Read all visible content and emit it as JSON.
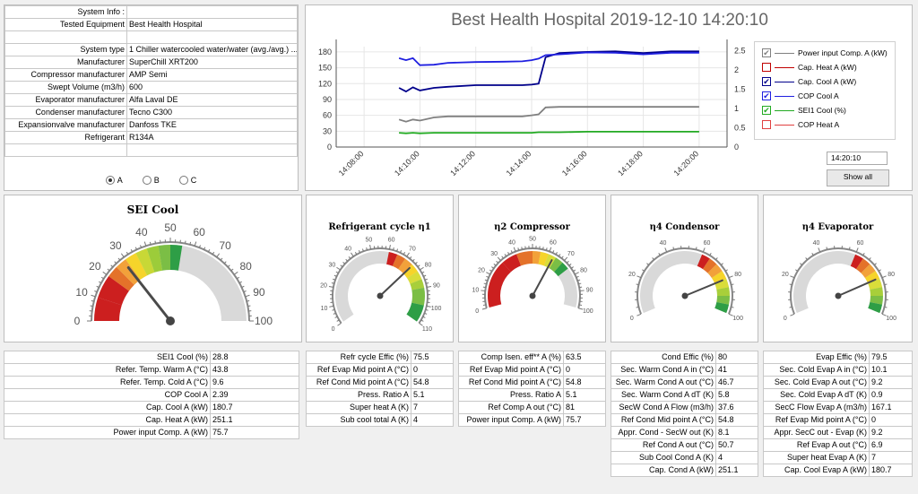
{
  "info": {
    "rows": [
      {
        "k": "System Info :",
        "v": ""
      },
      {
        "k": "Tested Equipment",
        "v": "Best Health Hospital"
      },
      {
        "k": "",
        "v": ""
      },
      {
        "k": "System type",
        "v": "1 Chiller watercooled water/water (avg./avg.) ..."
      },
      {
        "k": "Manufacturer",
        "v": "SuperChill XRT200"
      },
      {
        "k": "Compressor manufacturer",
        "v": "AMP Semi"
      },
      {
        "k": "Swept Volume (m3/h)",
        "v": "600"
      },
      {
        "k": "Evaporator manufacturer",
        "v": "Alfa Laval DE"
      },
      {
        "k": "Condenser manufacturer",
        "v": "Tecno C300"
      },
      {
        "k": "Expansionvalve manufacturer",
        "v": "Danfoss TKE"
      },
      {
        "k": "Refrigerant",
        "v": "R134A"
      },
      {
        "k": "",
        "v": ""
      }
    ],
    "radios": [
      {
        "label": "A",
        "selected": true
      },
      {
        "label": "B",
        "selected": false
      },
      {
        "label": "C",
        "selected": false
      }
    ]
  },
  "chart": {
    "title": "Best Health Hospital 2019-12-10 14:20:10",
    "time_value": "14:20:10",
    "show_all_label": "Show all",
    "left_ticks": [
      "0",
      "30",
      "60",
      "90",
      "120",
      "150",
      "180"
    ],
    "right_ticks": [
      "0",
      "0.5",
      "1",
      "1.5",
      "2",
      "2.5"
    ],
    "x_ticks": [
      "14:08:00",
      "14:10:00",
      "14:12:00",
      "14:14:00",
      "14:16:00",
      "14:18:00",
      "14:20:00"
    ],
    "legend": [
      {
        "label": "Power input Comp. A (kW)",
        "checked": true,
        "color": "#808080",
        "box": "#808080"
      },
      {
        "label": "Cap. Heat A (kW)",
        "checked": false,
        "color": "#c00000",
        "box": "#c00000"
      },
      {
        "label": "Cap. Cool A (kW)",
        "checked": true,
        "color": "#00008b",
        "box": "#00008b"
      },
      {
        "label": "COP Cool A",
        "checked": true,
        "color": "#1f1fe0",
        "box": "#1f1fe0"
      },
      {
        "label": "SEI1 Cool (%)",
        "checked": true,
        "color": "#22aa22",
        "box": "#22aa22"
      },
      {
        "label": "COP Heat A",
        "checked": false,
        "color": "#e04040",
        "box": "#e04040"
      }
    ]
  },
  "chart_data": {
    "type": "line",
    "x": [
      "14:09:15",
      "14:09:30",
      "14:09:45",
      "14:10:00",
      "14:10:30",
      "14:11:00",
      "14:12:00",
      "14:13:00",
      "14:13:40",
      "14:14:00",
      "14:14:15",
      "14:14:30",
      "14:15:00",
      "14:16:00",
      "14:17:00",
      "14:18:00",
      "14:19:00",
      "14:20:00"
    ],
    "series": [
      {
        "name": "Power input Comp. A (kW)",
        "axis": "left",
        "color": "#808080",
        "values": [
          52,
          48,
          52,
          50,
          56,
          58,
          58,
          58,
          58,
          60,
          62,
          75,
          76,
          76,
          76,
          76,
          76,
          76
        ]
      },
      {
        "name": "Cap. Cool A (kW)",
        "axis": "left",
        "color": "#00008b",
        "values": [
          112,
          105,
          113,
          107,
          112,
          114,
          117,
          117,
          117,
          118,
          120,
          170,
          178,
          180,
          181,
          178,
          181,
          181
        ]
      },
      {
        "name": "COP Cool A",
        "axis": "right",
        "color": "#1f1fe0",
        "values": [
          2.3,
          2.25,
          2.3,
          2.12,
          2.13,
          2.18,
          2.2,
          2.21,
          2.22,
          2.25,
          2.29,
          2.38,
          2.4,
          2.45,
          2.44,
          2.4,
          2.44,
          2.44
        ]
      },
      {
        "name": "SEI1 Cool (%)",
        "axis": "left",
        "color": "#22aa22",
        "values": [
          27,
          26,
          27,
          26,
          27,
          27,
          27,
          27,
          27,
          27,
          28,
          28,
          28,
          29,
          29,
          29,
          29,
          29
        ]
      }
    ],
    "ylim_left": [
      0,
      190
    ],
    "ylim_right": [
      0,
      2.6
    ]
  },
  "gauges": {
    "sei": {
      "title": "SEI Cool",
      "value": 28.8,
      "ticks": [
        "0",
        "10",
        "20",
        "30",
        "40",
        "50",
        "60",
        "70",
        "80",
        "90",
        "100"
      ]
    },
    "refr": {
      "title": "Refrigerant cycle η1",
      "value": 75.5,
      "ticks": [
        "0",
        "10",
        "20",
        "30",
        "40",
        "50",
        "60",
        "70",
        "80",
        "90",
        "100",
        "110"
      ]
    },
    "comp": {
      "title": "η2 Compressor",
      "value": 63.5,
      "ticks": [
        "0",
        "10",
        "20",
        "30",
        "40",
        "50",
        "60",
        "70",
        "80",
        "90",
        "100"
      ]
    },
    "cond": {
      "title": "η4 Condensor",
      "value": 80,
      "ticks": [
        "0",
        "20",
        "40",
        "60",
        "80",
        "100"
      ]
    },
    "evap": {
      "title": "η4 Evaporator",
      "value": 79.5,
      "ticks": [
        "0",
        "20",
        "40",
        "60",
        "80",
        "100"
      ]
    }
  },
  "tables": {
    "sei": [
      {
        "k": "SEI1 Cool (%)",
        "v": "28.8"
      },
      {
        "k": "Refer. Temp. Warm A (°C)",
        "v": "43.8"
      },
      {
        "k": "Refer. Temp. Cold A (°C)",
        "v": "9.6"
      },
      {
        "k": "COP Cool A",
        "v": "2.39"
      },
      {
        "k": "Cap. Cool A (kW)",
        "v": "180.7"
      },
      {
        "k": "Cap. Heat A (kW)",
        "v": "251.1"
      },
      {
        "k": "Power input Comp. A (kW)",
        "v": "75.7"
      }
    ],
    "refr": [
      {
        "k": "Refr cycle Effic (%)",
        "v": "75.5"
      },
      {
        "k": "Ref Evap Mid point A (°C)",
        "v": "0"
      },
      {
        "k": "Ref Cond Mid point A (°C)",
        "v": "54.8"
      },
      {
        "k": "Press. Ratio A",
        "v": "5.1"
      },
      {
        "k": "Super heat A (K)",
        "v": "7"
      },
      {
        "k": "Sub cool total A (K)",
        "v": "4"
      }
    ],
    "comp": [
      {
        "k": "Comp Isen. eff** A (%)",
        "v": "63.5"
      },
      {
        "k": "Ref Evap Mid point A (°C)",
        "v": "0"
      },
      {
        "k": "Ref Cond Mid point A (°C)",
        "v": "54.8"
      },
      {
        "k": "Press. Ratio A",
        "v": "5.1"
      },
      {
        "k": "Ref Comp A out (°C)",
        "v": "81"
      },
      {
        "k": "Power input Comp. A (kW)",
        "v": "75.7"
      }
    ],
    "cond": [
      {
        "k": "Cond Effic (%)",
        "v": "80"
      },
      {
        "k": "Sec. Warm Cond A in (°C)",
        "v": "41"
      },
      {
        "k": "Sec. Warm Cond A out (°C)",
        "v": "46.7"
      },
      {
        "k": "Sec. Warm Cond A dT (K)",
        "v": "5.8"
      },
      {
        "k": "SecW Cond A Flow (m3/h)",
        "v": "37.6"
      },
      {
        "k": "Ref Cond Mid point A (°C)",
        "v": "54.8"
      },
      {
        "k": "Appr. Cond -  SecW out (K)",
        "v": "8.1"
      },
      {
        "k": "Ref Cond A out (°C)",
        "v": "50.7"
      },
      {
        "k": "Sub Cool Cond A (K)",
        "v": "4"
      },
      {
        "k": "Cap. Cond A (kW)",
        "v": "251.1"
      }
    ],
    "evap": [
      {
        "k": "Evap Effic (%)",
        "v": "79.5"
      },
      {
        "k": "Sec. Cold Evap A in (°C)",
        "v": "10.1"
      },
      {
        "k": "Sec. Cold Evap A out (°C)",
        "v": "9.2"
      },
      {
        "k": "Sec. Cold Evap A dT (K)",
        "v": "0.9"
      },
      {
        "k": "SecC Flow Evap A (m3/h)",
        "v": "167.1"
      },
      {
        "k": "Ref Evap Mid point A (°C)",
        "v": "0"
      },
      {
        "k": "Appr. SecC out -  Evap (K)",
        "v": "9.2"
      },
      {
        "k": "Ref Evap A out (°C)",
        "v": "6.9"
      },
      {
        "k": "Super heat Evap A (K)",
        "v": "7"
      },
      {
        "k": "Cap. Cool Evap A (kW)",
        "v": "180.7"
      }
    ]
  }
}
